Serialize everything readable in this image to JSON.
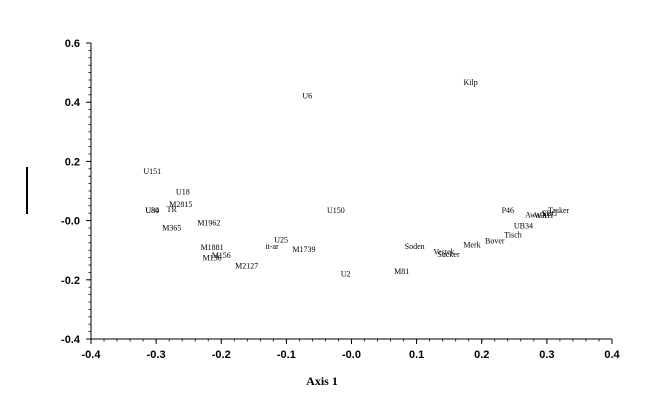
{
  "chart_data": {
    "type": "scatter",
    "title": "",
    "xlabel": "Axis 1",
    "ylabel": "",
    "xlim": [
      -0.4,
      0.4
    ],
    "ylim": [
      -0.4,
      0.6
    ],
    "x_ticks": [
      "-0.4",
      "-0.3",
      "-0.2",
      "-0.1",
      "-0.0",
      "0.1",
      "0.2",
      "0.3",
      "0.4"
    ],
    "y_ticks": [
      "0.6",
      "0.4",
      "0.2",
      "-0.0",
      "-0.2",
      "-0.4"
    ],
    "grid": false,
    "points": [
      {
        "label": "Kilp",
        "x": 0.183,
        "y": 0.469
      },
      {
        "label": "U6",
        "x": -0.068,
        "y": 0.423
      },
      {
        "label": "U151",
        "x": -0.306,
        "y": 0.167
      },
      {
        "label": "U18",
        "x": -0.259,
        "y": 0.098
      },
      {
        "label": "M2815",
        "x": -0.262,
        "y": 0.056
      },
      {
        "label": "TR",
        "x": -0.276,
        "y": 0.04
      },
      {
        "label": "U80",
        "x": -0.306,
        "y": 0.036
      },
      {
        "label": "U34",
        "x": -0.306,
        "y": 0.036
      },
      {
        "label": "U150",
        "x": -0.024,
        "y": 0.035
      },
      {
        "label": "M365",
        "x": -0.276,
        "y": -0.024
      },
      {
        "label": "M1962",
        "x": -0.219,
        "y": -0.007
      },
      {
        "label": "U25",
        "x": -0.108,
        "y": -0.064
      },
      {
        "label": "it-ar",
        "x": -0.122,
        "y": -0.085
      },
      {
        "label": "M1881",
        "x": -0.214,
        "y": -0.089
      },
      {
        "label": "M1739",
        "x": -0.073,
        "y": -0.096
      },
      {
        "label": "M156",
        "x": -0.2,
        "y": -0.117
      },
      {
        "label": "M136",
        "x": -0.214,
        "y": -0.125
      },
      {
        "label": "M2127",
        "x": -0.161,
        "y": -0.152
      },
      {
        "label": "U2",
        "x": -0.009,
        "y": -0.178
      },
      {
        "label": "M81",
        "x": 0.077,
        "y": -0.17
      },
      {
        "label": "Soden",
        "x": 0.097,
        "y": -0.085
      },
      {
        "label": "Vestek",
        "x": 0.142,
        "y": -0.104
      },
      {
        "label": "Sucker",
        "x": 0.149,
        "y": -0.113
      },
      {
        "label": "Merk",
        "x": 0.185,
        "y": -0.081
      },
      {
        "label": "Bover",
        "x": 0.22,
        "y": -0.067
      },
      {
        "label": "Tisch",
        "x": 0.248,
        "y": -0.047
      },
      {
        "label": "UB34",
        "x": 0.264,
        "y": -0.017
      },
      {
        "label": "P46",
        "x": 0.24,
        "y": 0.036
      },
      {
        "label": "Awash",
        "x": 0.283,
        "y": 0.021
      },
      {
        "label": "WXH",
        "x": 0.295,
        "y": 0.019
      },
      {
        "label": "SBG",
        "x": 0.304,
        "y": 0.025
      },
      {
        "label": "Tasker",
        "x": 0.318,
        "y": 0.036
      }
    ]
  }
}
